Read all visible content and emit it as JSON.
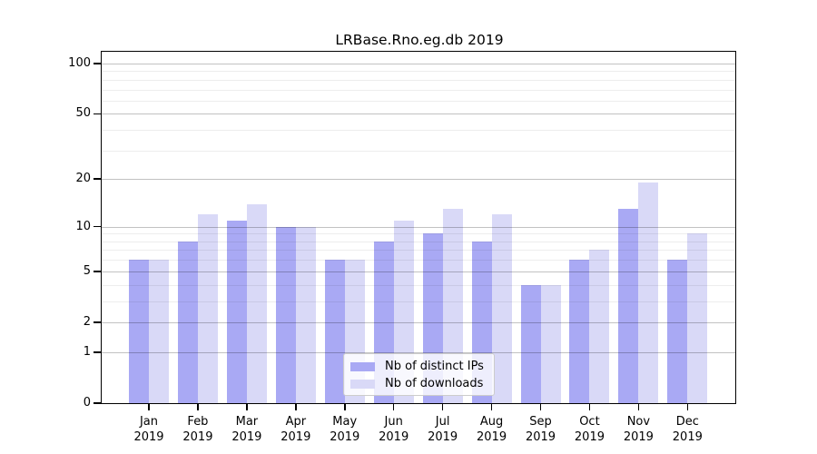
{
  "chart_data": {
    "type": "bar",
    "title": "LRBase.Rno.eg.db 2019",
    "categories": [
      "Jan",
      "Feb",
      "Mar",
      "Apr",
      "May",
      "Jun",
      "Jul",
      "Aug",
      "Sep",
      "Oct",
      "Nov",
      "Dec"
    ],
    "x_year_label": "2019",
    "series": [
      {
        "name": "Nb of distinct IPs",
        "color": "#a9a9f4",
        "values": [
          6,
          8,
          11,
          10,
          6,
          8,
          9,
          8,
          4,
          6,
          13,
          6
        ]
      },
      {
        "name": "Nb of downloads",
        "color": "#d9d9f7",
        "values": [
          6,
          12,
          14,
          10,
          6,
          11,
          13,
          12,
          4,
          7,
          19,
          9
        ]
      }
    ],
    "yscale": "log10(1+v)",
    "ylim": [
      0,
      117
    ],
    "yticks": [
      0,
      1,
      2,
      5,
      10,
      20,
      50,
      100
    ],
    "yticks_minor": [
      3,
      4,
      6,
      7,
      8,
      9,
      30,
      40,
      60,
      70,
      80,
      90
    ],
    "grid": true,
    "legend_position": "lower center",
    "colors": {
      "axis": "#000000",
      "grid_major": "rgba(0,0,0,0.24)",
      "grid_minor": "rgba(0,0,0,0.07)",
      "legend_border": "#cccccc"
    }
  }
}
